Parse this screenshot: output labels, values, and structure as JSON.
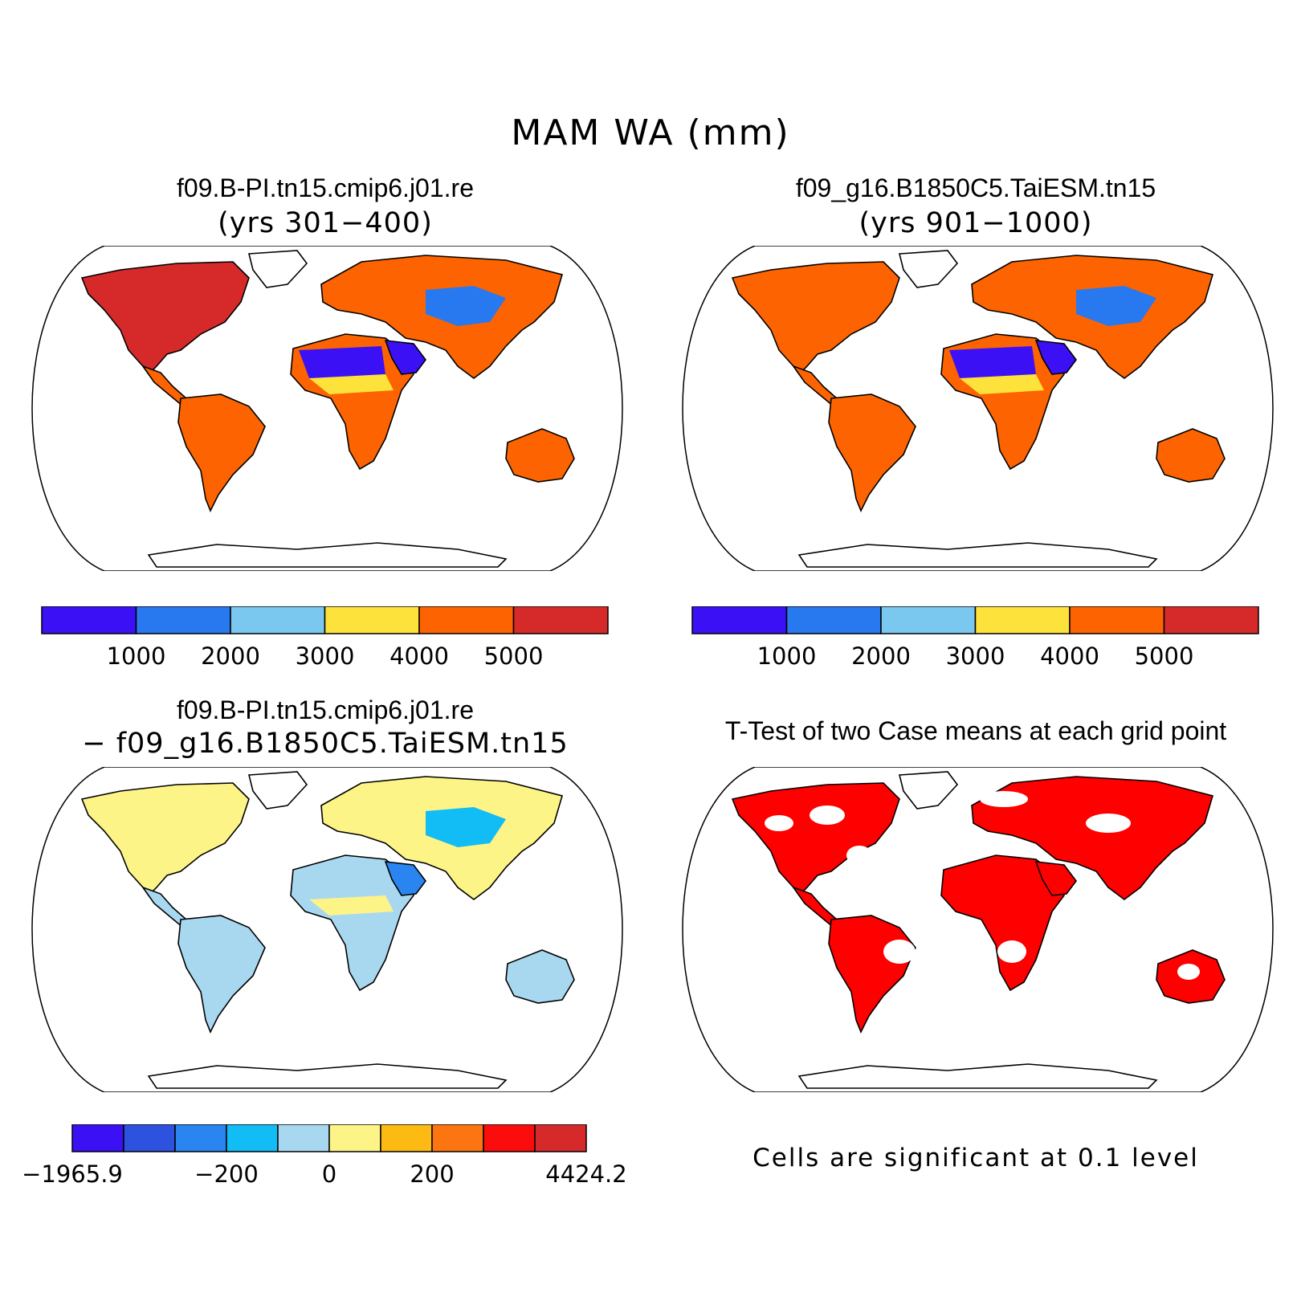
{
  "figure": {
    "title": "MAM WA (mm)"
  },
  "panels": [
    {
      "title": "f09.B-PI.tn15.cmip6.j01.re",
      "subtitle": "(yrs 301−400)",
      "colorbar": {
        "colors": [
          "#3b10f5",
          "#2878f0",
          "#7ac8f0",
          "#fde23c",
          "#fd6400",
          "#d62a2a"
        ],
        "labels": [
          "1000",
          "2000",
          "3000",
          "4000",
          "5000"
        ]
      }
    },
    {
      "title": "f09_g16.B1850C5.TaiESM.tn15",
      "subtitle": "(yrs 901−1000)",
      "colorbar": {
        "colors": [
          "#3b10f5",
          "#2878f0",
          "#7ac8f0",
          "#fde23c",
          "#fd6400",
          "#d62a2a"
        ],
        "labels": [
          "1000",
          "2000",
          "3000",
          "4000",
          "5000"
        ]
      }
    },
    {
      "title": "f09.B-PI.tn15.cmip6.j01.re",
      "subtitle": "− f09_g16.B1850C5.TaiESM.tn15",
      "colorbar": {
        "colors": [
          "#3b10f5",
          "#2e52e0",
          "#2a85f0",
          "#12bcf5",
          "#a8d8f0",
          "#fdf487",
          "#fdba12",
          "#fd7510",
          "#fb0d0d",
          "#d62a2a"
        ],
        "labels": [
          "−1965.9",
          "−200",
          "0",
          "200",
          "4424.2"
        ]
      }
    },
    {
      "title": "T-Test of two Case means at each grid point",
      "note": "Cells are significant at 0.1 level"
    }
  ],
  "map_fills": {
    "p1": {
      "north_america": "#d62a2a",
      "south_america": "#fd6400",
      "eurasia": "#fd6400",
      "africa": "#fd6400",
      "australia": "#fd6400",
      "sahara": "#3b10f5",
      "arabia": "#3b10f5",
      "central_asia": "#2878f0",
      "sahel": "#fde23c"
    },
    "p2": {
      "north_america": "#fd6400",
      "south_america": "#fd6400",
      "eurasia": "#fd6400",
      "africa": "#fd6400",
      "australia": "#fd6400",
      "sahara": "#3b10f5",
      "arabia": "#3b10f5",
      "central_asia": "#2878f0",
      "sahel": "#fde23c"
    },
    "p3": {
      "north_america": "#fdf487",
      "south_america": "#a8d8f0",
      "eurasia": "#fdf487",
      "africa": "#a8d8f0",
      "australia": "#a8d8f0",
      "sahara": "#a8d8f0",
      "arabia": "#2a85f0",
      "central_asia": "#12bcf5",
      "sahel": "#fdf487"
    },
    "p4": {
      "significant": "#ff0000"
    }
  }
}
